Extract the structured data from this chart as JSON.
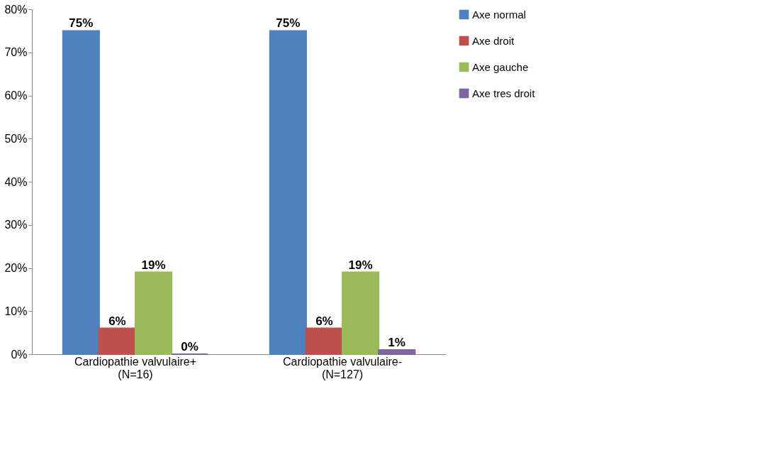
{
  "chart_data": {
    "type": "bar",
    "categories": [
      "Cardiopathie valvulaire+\n(N=16)",
      "Cardiopathie valvulaire-\n(N=127)"
    ],
    "series": [
      {
        "name": "Axe normal",
        "color": "#4f81bd",
        "values": [
          75,
          75
        ],
        "value_labels": [
          "75%",
          "75%"
        ]
      },
      {
        "name": "Axe droit",
        "color": "#c0504d",
        "values": [
          6,
          6
        ],
        "value_labels": [
          "6%",
          "6%"
        ]
      },
      {
        "name": "Axe gauche",
        "color": "#9bbb59",
        "values": [
          19,
          19
        ],
        "value_labels": [
          "19%",
          "19%"
        ]
      },
      {
        "name": "Axe tres droit",
        "color": "#8064a2",
        "values": [
          0,
          1
        ],
        "value_labels": [
          "0%",
          "1%"
        ]
      }
    ],
    "ylim": [
      0,
      80
    ],
    "yticks": [
      {
        "value": 0,
        "label": "0%"
      },
      {
        "value": 10,
        "label": "10%"
      },
      {
        "value": 20,
        "label": "20%"
      },
      {
        "value": 30,
        "label": "30%"
      },
      {
        "value": 40,
        "label": "40%"
      },
      {
        "value": 50,
        "label": "50%"
      },
      {
        "value": 60,
        "label": "60%"
      },
      {
        "value": 70,
        "label": "70%"
      },
      {
        "value": 80,
        "label": "80%"
      }
    ],
    "grid": false,
    "legend": "right"
  }
}
